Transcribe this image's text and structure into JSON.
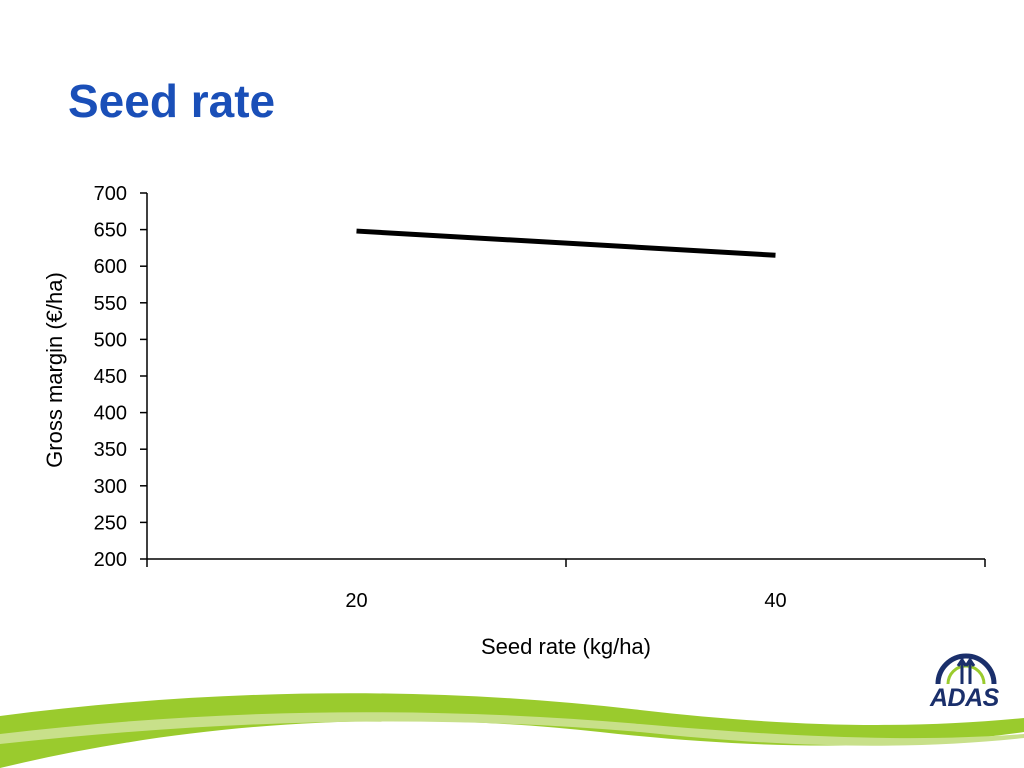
{
  "slide": {
    "title": "Seed rate"
  },
  "chart_data": {
    "type": "line",
    "xlabel": "Seed rate (kg/ha)",
    "ylabel": "Gross margin (€/ha)",
    "categories": [
      "20",
      "40"
    ],
    "series": [
      {
        "values": [
          648,
          615
        ],
        "color": "#000000"
      }
    ],
    "ylim": [
      200,
      700
    ],
    "yticks": [
      200,
      250,
      300,
      350,
      400,
      450,
      500,
      550,
      600,
      650,
      700
    ],
    "grid": false,
    "legend": "none"
  },
  "logo": {
    "text": "ADAS",
    "colors": {
      "brand": "#1a2f6b",
      "accent": "#9acb2d"
    }
  },
  "theme": {
    "title_color": "#1a4fb8",
    "swoosh_color": "#9acb2d"
  }
}
